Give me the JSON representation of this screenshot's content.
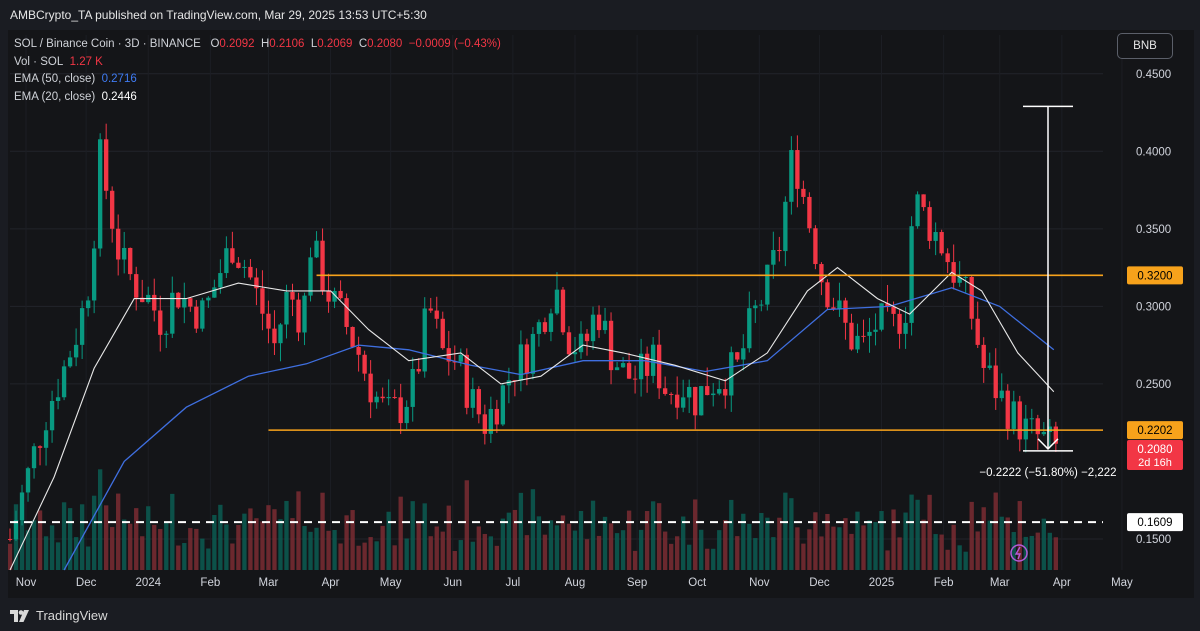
{
  "header": {
    "publisher": "AMBCrypto_TA published on TradingView.com, Mar 29, 2025 13:53 UTC+5:30"
  },
  "legend": {
    "symbol": "SOL / Binance Coin · 3D · BINANCE",
    "o_label": "O",
    "o": "0.2092",
    "h_label": "H",
    "h": "0.2106",
    "l_label": "L",
    "l": "0.2069",
    "c_label": "C",
    "c": "0.2080",
    "change": "−0.0009 (−0.43%)",
    "vol_label": "Vol · SOL",
    "vol": "1.27 K",
    "ema50_label": "EMA (50, close)",
    "ema50": "0.2716",
    "ema20_label": "EMA (20, close)",
    "ema20": "0.2446"
  },
  "currency_button": "BNB",
  "footer": {
    "brand": "TradingView"
  },
  "colors": {
    "up": "#089981",
    "down": "#f23645",
    "orange": "#f7a21b",
    "ema50": "#3f6fe0",
    "ema20": "#e8e8e8"
  },
  "chart_data": {
    "type": "candlestick",
    "y_ticks": [
      "0.4500",
      "0.4000",
      "0.3500",
      "0.3000",
      "0.2500",
      "0.1500"
    ],
    "x_ticks": [
      "Nov",
      "Dec",
      "2024",
      "Feb",
      "Mar",
      "Apr",
      "May",
      "Jun",
      "Jul",
      "Aug",
      "Sep",
      "Oct",
      "Nov",
      "Dec",
      "2025",
      "Feb",
      "Mar",
      "Apr",
      "May"
    ],
    "x_tick_dates": [
      "2023-11-01",
      "2023-12-01",
      "2024-01-01",
      "2024-02-01",
      "2024-03-01",
      "2024-04-01",
      "2024-05-01",
      "2024-06-01",
      "2024-07-01",
      "2024-08-01",
      "2024-09-01",
      "2024-10-01",
      "2024-11-01",
      "2024-12-01",
      "2025-01-01",
      "2025-02-01",
      "2025-03-01",
      "2025-04-01",
      "2025-05-01"
    ],
    "ylim": [
      0.13,
      0.475
    ],
    "levels": [
      {
        "label": "0.3200",
        "value": 0.32,
        "from": "2024-03-25"
      },
      {
        "label": "0.2202",
        "value": 0.2202,
        "from": "2024-03-01"
      },
      {
        "label": "0.1609",
        "value": 0.1609,
        "from": "2023-10-24",
        "dashed": true
      }
    ],
    "last_price": {
      "label": "0.2080",
      "countdown": "2d 16h",
      "value": 0.208
    },
    "measure": {
      "text": "−0.2222 (−51.80%) −2,222",
      "from": 0.429,
      "to": 0.2068
    },
    "close_points": [
      [
        "2023-10-24",
        0.15
      ],
      [
        "2023-11-05",
        0.205
      ],
      [
        "2023-11-12",
        0.235
      ],
      [
        "2023-11-20",
        0.26
      ],
      [
        "2023-11-28",
        0.29
      ],
      [
        "2023-12-03",
        0.32
      ],
      [
        "2023-12-08",
        0.395
      ],
      [
        "2023-12-12",
        0.37
      ],
      [
        "2023-12-18",
        0.33
      ],
      [
        "2023-12-25",
        0.315
      ],
      [
        "2024-01-01",
        0.305
      ],
      [
        "2024-01-08",
        0.29
      ],
      [
        "2024-01-15",
        0.31
      ],
      [
        "2024-01-22",
        0.3
      ],
      [
        "2024-01-29",
        0.295
      ],
      [
        "2024-02-05",
        0.32
      ],
      [
        "2024-02-12",
        0.34
      ],
      [
        "2024-02-19",
        0.325
      ],
      [
        "2024-02-26",
        0.3
      ],
      [
        "2024-03-04",
        0.275
      ],
      [
        "2024-03-11",
        0.31
      ],
      [
        "2024-03-18",
        0.29
      ],
      [
        "2024-03-22",
        0.34
      ],
      [
        "2024-04-01",
        0.305
      ],
      [
        "2024-04-08",
        0.29
      ],
      [
        "2024-04-15",
        0.27
      ],
      [
        "2024-04-22",
        0.245
      ],
      [
        "2024-04-29",
        0.23
      ],
      [
        "2024-05-06",
        0.235
      ],
      [
        "2024-05-13",
        0.25
      ],
      [
        "2024-05-20",
        0.3
      ],
      [
        "2024-05-27",
        0.27
      ],
      [
        "2024-06-03",
        0.265
      ],
      [
        "2024-06-10",
        0.24
      ],
      [
        "2024-06-17",
        0.225
      ],
      [
        "2024-06-24",
        0.24
      ],
      [
        "2024-07-01",
        0.26
      ],
      [
        "2024-07-08",
        0.27
      ],
      [
        "2024-07-15",
        0.29
      ],
      [
        "2024-07-22",
        0.315
      ],
      [
        "2024-07-29",
        0.28
      ],
      [
        "2024-08-05",
        0.27
      ],
      [
        "2024-08-12",
        0.3
      ],
      [
        "2024-08-19",
        0.27
      ],
      [
        "2024-08-26",
        0.255
      ],
      [
        "2024-09-02",
        0.255
      ],
      [
        "2024-09-09",
        0.265
      ],
      [
        "2024-09-16",
        0.245
      ],
      [
        "2024-09-23",
        0.25
      ],
      [
        "2024-09-30",
        0.24
      ],
      [
        "2024-10-07",
        0.25
      ],
      [
        "2024-10-14",
        0.255
      ],
      [
        "2024-10-21",
        0.26
      ],
      [
        "2024-10-28",
        0.29
      ],
      [
        "2024-11-04",
        0.31
      ],
      [
        "2024-11-11",
        0.34
      ],
      [
        "2024-11-18",
        0.4
      ],
      [
        "2024-11-25",
        0.36
      ],
      [
        "2024-12-02",
        0.32
      ],
      [
        "2024-12-09",
        0.3
      ],
      [
        "2024-12-16",
        0.28
      ],
      [
        "2024-12-23",
        0.275
      ],
      [
        "2024-12-30",
        0.29
      ],
      [
        "2025-01-06",
        0.285
      ],
      [
        "2025-01-13",
        0.3
      ],
      [
        "2025-01-17",
        0.37
      ],
      [
        "2025-01-24",
        0.355
      ],
      [
        "2025-01-31",
        0.34
      ],
      [
        "2025-02-07",
        0.32
      ],
      [
        "2025-02-14",
        0.3
      ],
      [
        "2025-02-21",
        0.26
      ],
      [
        "2025-02-28",
        0.245
      ],
      [
        "2025-03-07",
        0.23
      ],
      [
        "2025-03-14",
        0.22
      ],
      [
        "2025-03-21",
        0.215
      ],
      [
        "2025-03-29",
        0.208
      ]
    ],
    "ema20_points": [
      [
        "2023-10-24",
        0.13
      ],
      [
        "2023-11-15",
        0.19
      ],
      [
        "2023-12-05",
        0.26
      ],
      [
        "2023-12-25",
        0.305
      ],
      [
        "2024-01-20",
        0.305
      ],
      [
        "2024-02-15",
        0.315
      ],
      [
        "2024-03-10",
        0.31
      ],
      [
        "2024-04-01",
        0.31
      ],
      [
        "2024-04-20",
        0.285
      ],
      [
        "2024-05-10",
        0.265
      ],
      [
        "2024-06-05",
        0.27
      ],
      [
        "2024-06-25",
        0.25
      ],
      [
        "2024-07-15",
        0.255
      ],
      [
        "2024-08-05",
        0.275
      ],
      [
        "2024-08-25",
        0.27
      ],
      [
        "2024-09-20",
        0.262
      ],
      [
        "2024-10-15",
        0.252
      ],
      [
        "2024-11-05",
        0.27
      ],
      [
        "2024-11-25",
        0.31
      ],
      [
        "2024-12-10",
        0.325
      ],
      [
        "2024-12-30",
        0.305
      ],
      [
        "2025-01-15",
        0.295
      ],
      [
        "2025-02-05",
        0.322
      ],
      [
        "2025-02-20",
        0.31
      ],
      [
        "2025-03-10",
        0.27
      ],
      [
        "2025-03-28",
        0.245
      ]
    ],
    "ema50_points": [
      [
        "2023-11-20",
        0.13
      ],
      [
        "2023-12-20",
        0.2
      ],
      [
        "2024-01-20",
        0.235
      ],
      [
        "2024-02-20",
        0.255
      ],
      [
        "2024-03-20",
        0.263
      ],
      [
        "2024-04-15",
        0.275
      ],
      [
        "2024-05-10",
        0.272
      ],
      [
        "2024-06-10",
        0.262
      ],
      [
        "2024-07-05",
        0.256
      ],
      [
        "2024-08-05",
        0.265
      ],
      [
        "2024-09-05",
        0.265
      ],
      [
        "2024-10-05",
        0.258
      ],
      [
        "2024-11-05",
        0.265
      ],
      [
        "2024-12-05",
        0.298
      ],
      [
        "2025-01-05",
        0.3
      ],
      [
        "2025-02-05",
        0.312
      ],
      [
        "2025-03-01",
        0.3
      ],
      [
        "2025-03-28",
        0.272
      ]
    ]
  }
}
